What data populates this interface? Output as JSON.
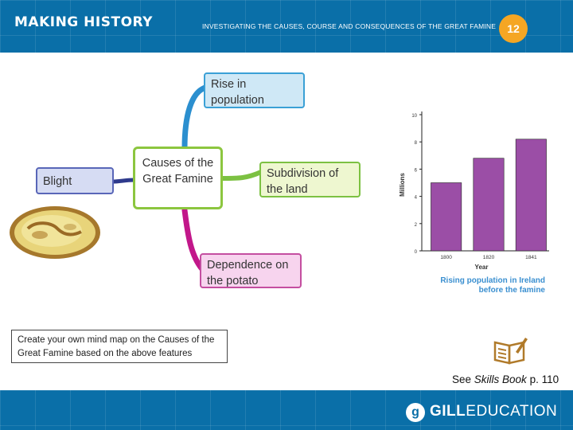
{
  "header": {
    "brand": "MAKING HISTORY",
    "subtitle": "INVESTIGATING THE CAUSES, COURSE AND CONSEQUENCES OF THE GREAT FAMINE",
    "page_number": "12"
  },
  "mindmap": {
    "center": "Causes of the Great Famine",
    "nodes": {
      "rise": "Rise in population",
      "subdivision": "Subdivision of the land",
      "blight": "Blight",
      "dependence": "Dependence on the potato"
    }
  },
  "chart_data": {
    "type": "bar",
    "categories": [
      "1800",
      "1820",
      "1841"
    ],
    "values": [
      5,
      6.8,
      8.2
    ],
    "xlabel": "Year",
    "ylabel": "Millions",
    "ylim": [
      0,
      10
    ],
    "yticks": [
      "0",
      "2",
      "4",
      "6",
      "8",
      "10"
    ],
    "caption_line1": "Rising population in Ireland",
    "caption_line2": "before the famine",
    "bar_color": "#9b4ea6"
  },
  "activity": {
    "text": "Create your own mind map on the Causes of the Great Famine based on the above features"
  },
  "skills": {
    "prefix": "See ",
    "book": "Skills Book",
    "suffix": " p. 110"
  },
  "footer": {
    "logo_letter": "g",
    "brand_bold": "GILL",
    "brand_rest": "EDUCATION"
  },
  "colors": {
    "header_bg": "#0a6fa8",
    "badge": "#f5a623"
  }
}
